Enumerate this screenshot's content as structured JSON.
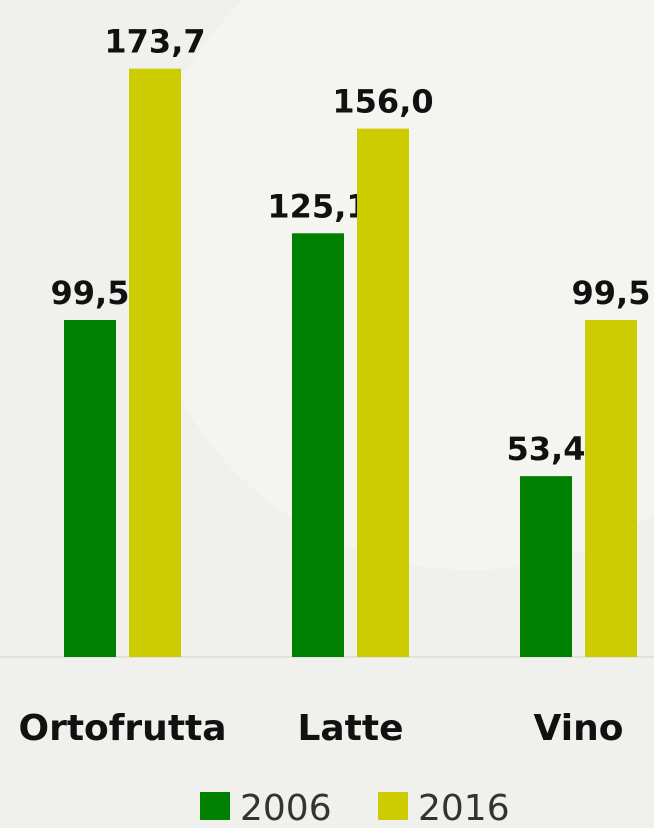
{
  "chart_data": {
    "type": "bar",
    "categories": [
      "Ortofrutta",
      "Latte",
      "Vino"
    ],
    "series": [
      {
        "name": "2006",
        "color": "#008000",
        "values": [
          99.5,
          125.1,
          53.4
        ],
        "value_labels": [
          "99,5",
          "125,1",
          "53,4"
        ]
      },
      {
        "name": "2016",
        "color": "#cccc00",
        "values": [
          173.7,
          156.0,
          99.5
        ],
        "value_labels": [
          "173,7",
          "156,0",
          "99,5"
        ]
      }
    ]
  }
}
